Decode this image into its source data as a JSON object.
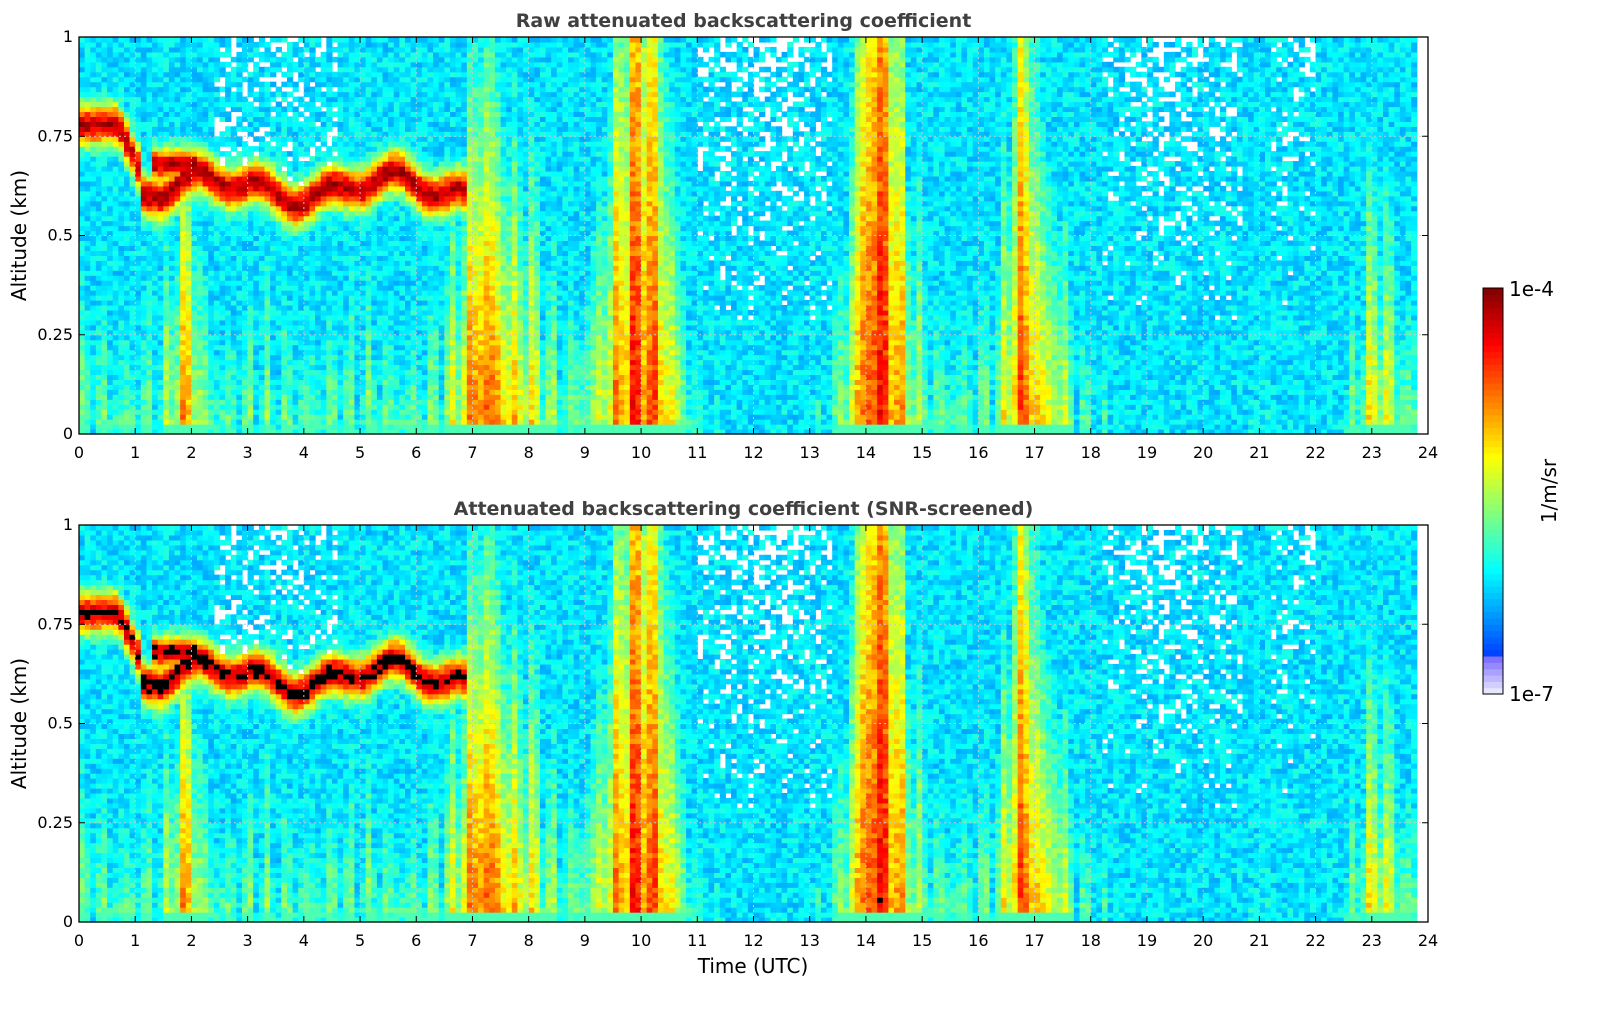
{
  "chart_data": [
    {
      "type": "heatmap",
      "title": "Raw attenuated backscattering coefficient",
      "xlabel": "",
      "ylabel": "Altitude (km)",
      "xlim": [
        0,
        24
      ],
      "ylim": [
        0,
        1
      ],
      "x_ticks": [
        "0",
        "1",
        "2",
        "3",
        "4",
        "5",
        "6",
        "7",
        "8",
        "9",
        "10",
        "11",
        "12",
        "13",
        "14",
        "15",
        "16",
        "17",
        "18",
        "19",
        "20",
        "21",
        "22",
        "23",
        "24"
      ],
      "y_ticks": [
        "0",
        "0.25",
        "0.5",
        "0.75",
        "1"
      ],
      "grid": true,
      "colorscale": "jet",
      "screened": false
    },
    {
      "type": "heatmap",
      "title": "Attenuated backscattering coefficient (SNR-screened)",
      "xlabel": "Time (UTC)",
      "ylabel": "Altitude (km)",
      "xlim": [
        0,
        24
      ],
      "ylim": [
        0,
        1
      ],
      "x_ticks": [
        "0",
        "1",
        "2",
        "3",
        "4",
        "5",
        "6",
        "7",
        "8",
        "9",
        "10",
        "11",
        "12",
        "13",
        "14",
        "15",
        "16",
        "17",
        "18",
        "19",
        "20",
        "21",
        "22",
        "23",
        "24"
      ],
      "y_ticks": [
        "0",
        "0.25",
        "0.5",
        "0.75",
        "1"
      ],
      "grid": true,
      "colorscale": "jet",
      "screened": true
    }
  ],
  "colorbar": {
    "label": "1/m/sr",
    "max_label": "1e-4",
    "min_label": "1e-7",
    "scale": "log",
    "range": [
      1e-07,
      0.0001
    ]
  },
  "colors": {
    "title_text": "#404040",
    "axis": "#000000",
    "grid": "#c8c8c8",
    "saturated_screened": "#000000",
    "background": "#ffffff"
  }
}
